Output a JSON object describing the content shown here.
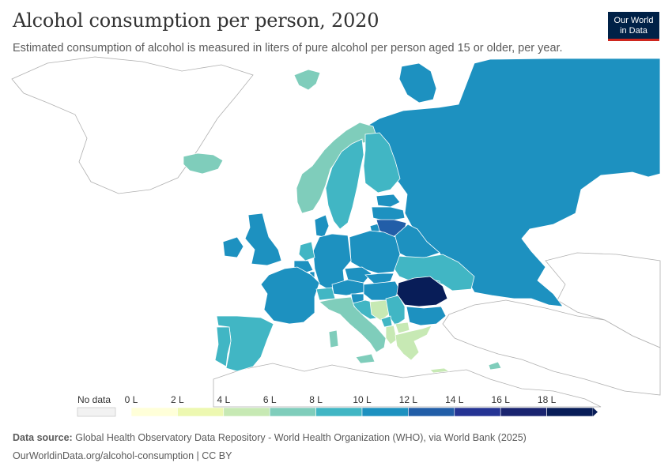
{
  "header": {
    "title": "Alcohol consumption per person, 2020",
    "subtitle": "Estimated consumption of alcohol is measured in liters of pure alcohol per person aged 15 or older, per year.",
    "logo_line1": "Our World",
    "logo_line2": "in Data"
  },
  "map": {
    "unit": "liters of pure alcohol per person (15+)",
    "year": "2020",
    "no_data_color": "#f2f2f2",
    "legend": {
      "no_data_label": "No data",
      "bins": [
        {
          "from": 0,
          "to": 2,
          "color": "#ffffd9"
        },
        {
          "from": 2,
          "to": 4,
          "color": "#edf8b1"
        },
        {
          "from": 4,
          "to": 6,
          "color": "#c7e9b4"
        },
        {
          "from": 6,
          "to": 8,
          "color": "#7fcdbb"
        },
        {
          "from": 8,
          "to": 10,
          "color": "#41b6c4"
        },
        {
          "from": 10,
          "to": 12,
          "color": "#1d91c0"
        },
        {
          "from": 12,
          "to": 14,
          "color": "#225ea8"
        },
        {
          "from": 14,
          "to": 16,
          "color": "#253494"
        },
        {
          "from": 16,
          "to": 18,
          "color": "#1a2470"
        },
        {
          "from": 18,
          "to": 20,
          "color": "#081d58"
        }
      ],
      "tick_labels": [
        "0 L",
        "2 L",
        "4 L",
        "6 L",
        "8 L",
        "10 L",
        "12 L",
        "14 L",
        "16 L",
        "18 L"
      ]
    },
    "countries": [
      {
        "name": "Russia",
        "bin": 5
      },
      {
        "name": "Finland",
        "bin": 4
      },
      {
        "name": "Sweden",
        "bin": 4
      },
      {
        "name": "Norway",
        "bin": 3
      },
      {
        "name": "Iceland",
        "bin": 3
      },
      {
        "name": "Svalbard",
        "bin": 3
      },
      {
        "name": "Denmark",
        "bin": 5
      },
      {
        "name": "Estonia",
        "bin": 5
      },
      {
        "name": "Latvia",
        "bin": 5
      },
      {
        "name": "Lithuania",
        "bin": 6
      },
      {
        "name": "Belarus",
        "bin": 5
      },
      {
        "name": "Ukraine",
        "bin": 4
      },
      {
        "name": "Moldova",
        "bin": 4
      },
      {
        "name": "Poland",
        "bin": 5
      },
      {
        "name": "Germany",
        "bin": 5
      },
      {
        "name": "Netherlands",
        "bin": 4
      },
      {
        "name": "Belgium",
        "bin": 5
      },
      {
        "name": "Luxembourg",
        "bin": 5
      },
      {
        "name": "France",
        "bin": 5
      },
      {
        "name": "United Kingdom",
        "bin": 5
      },
      {
        "name": "Ireland",
        "bin": 5
      },
      {
        "name": "Spain",
        "bin": 4
      },
      {
        "name": "Portugal",
        "bin": 4
      },
      {
        "name": "Switzerland",
        "bin": 4
      },
      {
        "name": "Austria",
        "bin": 5
      },
      {
        "name": "Czechia",
        "bin": 5
      },
      {
        "name": "Slovakia",
        "bin": 5
      },
      {
        "name": "Hungary",
        "bin": 5
      },
      {
        "name": "Slovenia",
        "bin": 5
      },
      {
        "name": "Croatia",
        "bin": 4
      },
      {
        "name": "Italy",
        "bin": 3
      },
      {
        "name": "Romania",
        "bin": 9
      },
      {
        "name": "Bulgaria",
        "bin": 5
      },
      {
        "name": "Serbia",
        "bin": 4
      },
      {
        "name": "Bosnia and Herzegovina",
        "bin": 2
      },
      {
        "name": "Montenegro",
        "bin": 4
      },
      {
        "name": "Albania",
        "bin": 2
      },
      {
        "name": "North Macedonia",
        "bin": 2
      },
      {
        "name": "Greece",
        "bin": 2
      },
      {
        "name": "Cyprus",
        "bin": 3
      }
    ]
  },
  "footer": {
    "source_label": "Data source:",
    "source_text": "Global Health Observatory Data Repository - World Health Organization (WHO), via World Bank (2025)",
    "url_text": "OurWorldinData.org/alcohol-consumption | CC BY"
  }
}
